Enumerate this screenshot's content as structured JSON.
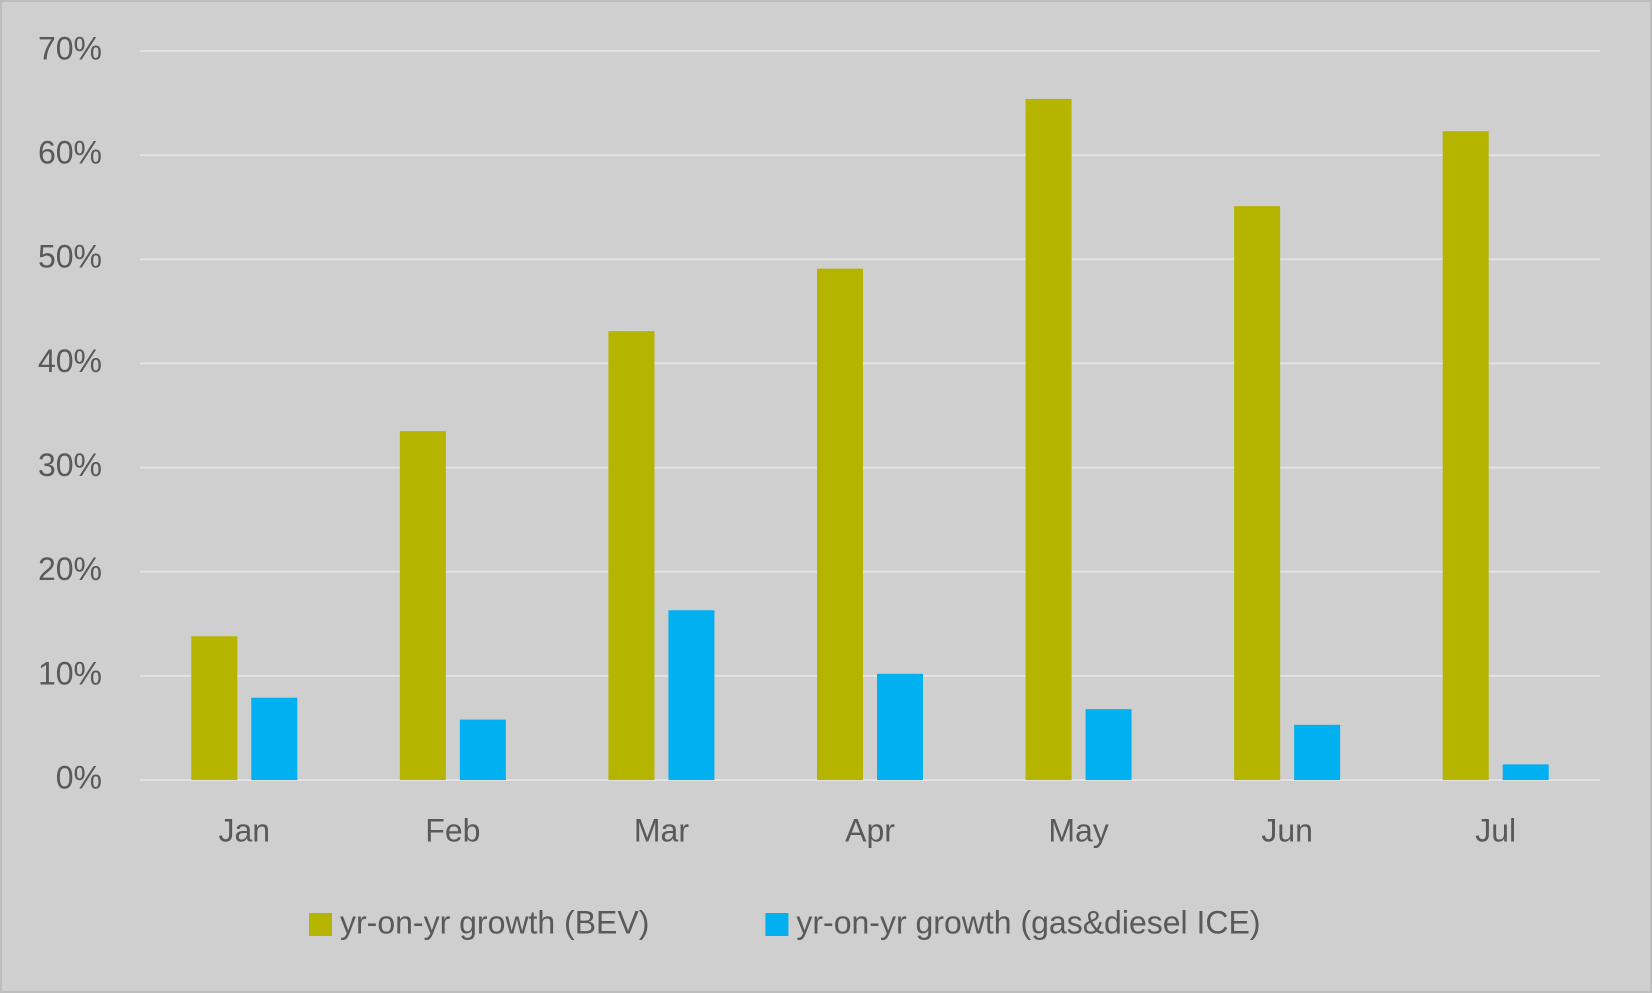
{
  "chart_data": {
    "type": "bar",
    "categories": [
      "Jan",
      "Feb",
      "Mar",
      "Apr",
      "May",
      "Jun",
      "Jul"
    ],
    "series": [
      {
        "name": "yr-on-yr growth (BEV)",
        "color": "#b5b500",
        "values": [
          13.8,
          33.5,
          43.1,
          49.1,
          65.4,
          55.1,
          62.3
        ]
      },
      {
        "name": "yr-on-yr growth (gas&diesel ICE)",
        "color": "#00b0f0",
        "values": [
          7.9,
          5.8,
          16.3,
          10.2,
          6.8,
          5.3,
          1.5
        ]
      }
    ],
    "ylim": [
      0,
      70
    ],
    "yticks": [
      {
        "value": 0,
        "label": "0%"
      },
      {
        "value": 10,
        "label": "10%"
      },
      {
        "value": 20,
        "label": "20%"
      },
      {
        "value": 30,
        "label": "30%"
      },
      {
        "value": 40,
        "label": "40%"
      },
      {
        "value": 50,
        "label": "50%"
      },
      {
        "value": 60,
        "label": "60%"
      },
      {
        "value": 70,
        "label": "70%"
      }
    ],
    "grid": true,
    "legend": "bottom"
  }
}
